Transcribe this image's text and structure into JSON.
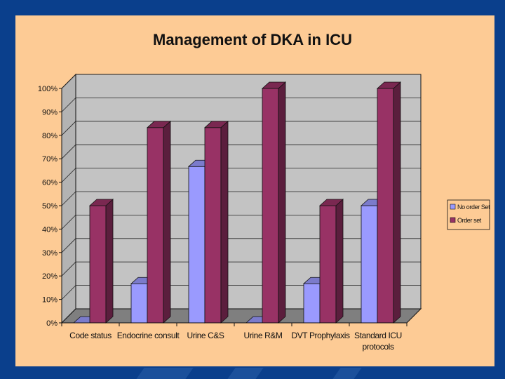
{
  "colors": {
    "background": "#0a3f8c",
    "panel": "#fdcb95",
    "plot_wall": "#c3c3c3",
    "floor": "#7f7f7f",
    "no_order_set": "#9a9afe",
    "order_set": "#983265"
  },
  "chart_data": {
    "type": "bar",
    "title": "Management of DKA in ICU",
    "xlabel": "",
    "ylabel": "",
    "ylim": [
      0,
      100
    ],
    "y_unit": "%",
    "y_ticks": [
      "0%",
      "10%",
      "20%",
      "30%",
      "40%",
      "50%",
      "60%",
      "70%",
      "80%",
      "90%",
      "100%"
    ],
    "categories": [
      "Code status",
      "Endocrine consult",
      "Urine C&S",
      "Urine R&M",
      "DVT Prophylaxis",
      "Standard ICU protocols"
    ],
    "category_lines": [
      [
        "Code status"
      ],
      [
        "Endocrine consult"
      ],
      [
        "Urine C&S"
      ],
      [
        "Urine R&M"
      ],
      [
        "DVT Prophylaxis"
      ],
      [
        "Standard ICU",
        "protocols"
      ]
    ],
    "series": [
      {
        "name": "No order Set",
        "values": [
          0,
          16.7,
          66.7,
          0,
          16.7,
          50
        ]
      },
      {
        "name": "Order set",
        "values": [
          50,
          83.3,
          83.3,
          100,
          50,
          100
        ]
      }
    ],
    "legend_position": "right",
    "grid": true,
    "three_d": true
  }
}
